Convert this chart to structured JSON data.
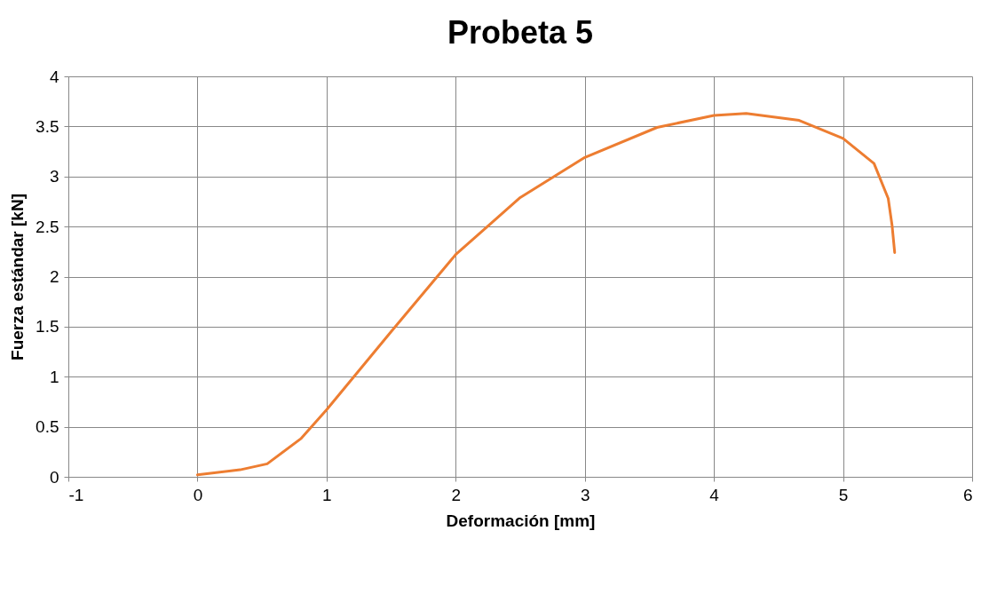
{
  "chart_data": {
    "type": "line",
    "title": "Probeta 5",
    "xlabel": "Deformación [mm]",
    "ylabel": "Fuerza estándar [kN]",
    "xlim": [
      -1,
      6
    ],
    "xticks": [
      -1,
      0,
      1,
      2,
      3,
      4,
      5,
      6
    ],
    "ylim": [
      0,
      4
    ],
    "yticks": [
      0,
      0.5,
      1,
      1.5,
      2,
      2.5,
      3,
      3.5,
      4
    ],
    "grid": true,
    "marker": "none",
    "line_style": "solid",
    "series": [
      {
        "color": "#ed7d31",
        "x": [
          0,
          0.33,
          0.54,
          0.8,
          1,
          1.5,
          2,
          2.5,
          3,
          3.56,
          4,
          4.25,
          4.66,
          5,
          5.24,
          5.35,
          5.38,
          5.4
        ],
        "values": [
          0.02,
          0.07,
          0.13,
          0.38,
          0.67,
          1.45,
          2.22,
          2.79,
          3.19,
          3.49,
          3.61,
          3.63,
          3.56,
          3.38,
          3.13,
          2.78,
          2.51,
          2.24
        ]
      }
    ]
  }
}
